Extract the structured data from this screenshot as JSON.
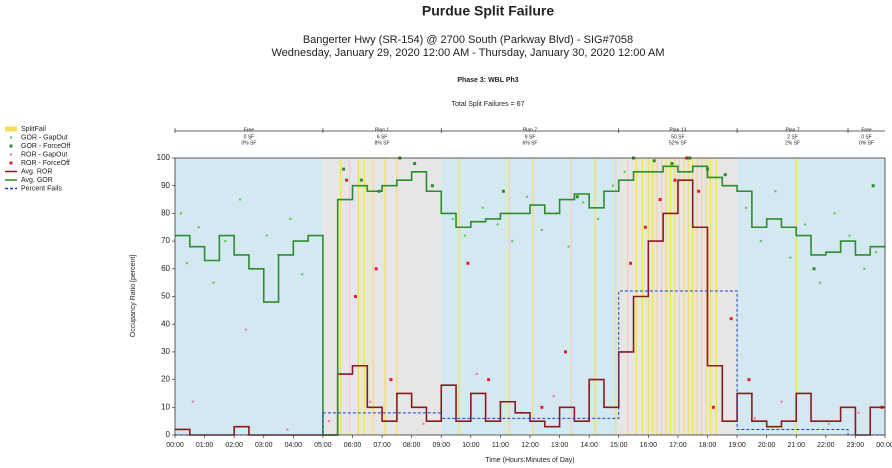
{
  "chart_data": {
    "type": "split-failure",
    "title": "Purdue Split Failure",
    "subtitle": [
      "Bangerter Hwy (SR-154) @ 2700 South (Parkway Blvd) - SIG#7058",
      "Wednesday, January 29, 2020 12:00 AM - Thursday, January 30, 2020 12:00 AM"
    ],
    "phase": "Phase 3: WBL Ph3",
    "total": "Total Split Failures = 67",
    "y_label": "Occupancy Ratio [percent]",
    "x_label": "Time (Hours:Minutes of Day)",
    "xlim": [
      0,
      24
    ],
    "ylim": [
      0,
      100
    ],
    "yticks": [
      0,
      10,
      20,
      30,
      40,
      50,
      60,
      70,
      80,
      90,
      100
    ],
    "xticks": [
      {
        "value": 0,
        "label": "00:00"
      },
      {
        "value": 1,
        "label": "01:00"
      },
      {
        "value": 2,
        "label": "02:00"
      },
      {
        "value": 3,
        "label": "03:00"
      },
      {
        "value": 4,
        "label": "04:00"
      },
      {
        "value": 5,
        "label": "05:00"
      },
      {
        "value": 6,
        "label": "06:00"
      },
      {
        "value": 7,
        "label": "07:00"
      },
      {
        "value": 8,
        "label": "08:00"
      },
      {
        "value": 9,
        "label": "09:00"
      },
      {
        "value": 10,
        "label": "10:00"
      },
      {
        "value": 11,
        "label": "11:00"
      },
      {
        "value": 12,
        "label": "12:00"
      },
      {
        "value": 13,
        "label": "13:00"
      },
      {
        "value": 14,
        "label": "14:00"
      },
      {
        "value": 15,
        "label": "15:00"
      },
      {
        "value": 16,
        "label": "16:00"
      },
      {
        "value": 17,
        "label": "17:00"
      },
      {
        "value": 18,
        "label": "18:00"
      },
      {
        "value": 19,
        "label": "19:00"
      },
      {
        "value": 20,
        "label": "20:00"
      },
      {
        "value": 21,
        "label": "21:00"
      },
      {
        "value": 22,
        "label": "22:00"
      },
      {
        "value": 23,
        "label": "23:00"
      },
      {
        "value": 24,
        "label": "00:00"
      }
    ],
    "plans": [
      {
        "name": "Free",
        "start": 0,
        "end": 5,
        "fails_label": "0 SF",
        "percent_label": "0% SF",
        "color": "#d4e8f2"
      },
      {
        "name": "Plan 1",
        "start": 5,
        "end": 9,
        "fails_label": "6 SF",
        "percent_label": "8% SF",
        "color": "#e6e6e6"
      },
      {
        "name": "Plan 7",
        "start": 9,
        "end": 15,
        "fails_label": "9 SF",
        "percent_label": "6% SF",
        "color": "#d4e8f2"
      },
      {
        "name": "Plan 13",
        "start": 15,
        "end": 19,
        "fails_label": "50 SF",
        "percent_label": "52% SF",
        "color": "#e6e6e6"
      },
      {
        "name": "Plan 7",
        "start": 19,
        "end": 22.75,
        "fails_label": "2 SF",
        "percent_label": "2% SF",
        "color": "#d4e8f2"
      },
      {
        "name": "Free",
        "start": 22.75,
        "end": 24,
        "fails_label": "0 SF",
        "percent_label": "0% SF",
        "color": "#d4e8f2"
      }
    ],
    "x": [
      0,
      0.5,
      1,
      1.5,
      2,
      2.5,
      3,
      3.5,
      4,
      4.5,
      5,
      5.5,
      6,
      6.5,
      7,
      7.5,
      8,
      8.5,
      9,
      9.5,
      10,
      10.5,
      11,
      11.5,
      12,
      12.5,
      13,
      13.5,
      14,
      14.5,
      15,
      15.5,
      16,
      16.5,
      17,
      17.5,
      18,
      18.5,
      19,
      19.5,
      20,
      20.5,
      21,
      21.5,
      22,
      22.5,
      23,
      23.5
    ],
    "series": [
      {
        "name": "SplitFail",
        "style": "vline",
        "color": "#f5df5a",
        "x": [
          5.6,
          5.9,
          6.2,
          6.4,
          6.7,
          7.1,
          7.5,
          9.6,
          11.3,
          12.1,
          13.4,
          14.2,
          14.9,
          15.3,
          15.6,
          15.8,
          16.0,
          16.15,
          16.3,
          16.45,
          16.6,
          16.75,
          16.9,
          17.05,
          17.2,
          17.35,
          17.5,
          17.65,
          17.8,
          17.95,
          18.1,
          18.3,
          21.0
        ]
      },
      {
        "name": "GOR - GapOut",
        "style": "dot",
        "color": "#5cc85c",
        "x": [
          0.2,
          0.4,
          0.8,
          1.3,
          1.7,
          2.2,
          2.6,
          3.1,
          3.5,
          3.9,
          4.3,
          9.4,
          9.8,
          10.4,
          10.9,
          11.4,
          11.9,
          12.4,
          12.9,
          13.3,
          13.8,
          14.3,
          14.8,
          15.2,
          19.3,
          19.8,
          20.3,
          20.8,
          21.3,
          21.8,
          22.3,
          22.8,
          23.3,
          23.7
        ],
        "values": [
          80,
          62,
          75,
          55,
          70,
          85,
          60,
          72,
          65,
          78,
          58,
          78,
          72,
          82,
          76,
          70,
          86,
          74,
          80,
          68,
          84,
          78,
          90,
          95,
          82,
          70,
          88,
          64,
          76,
          55,
          80,
          72,
          60,
          66
        ]
      },
      {
        "name": "GOR - ForceOff",
        "style": "square",
        "color": "#2e8b2e",
        "x": [
          5.7,
          6.3,
          6.9,
          7.6,
          8.1,
          8.7,
          11.1,
          13.6,
          15.5,
          16.2,
          16.8,
          17.4,
          18.0,
          18.6,
          21.6,
          23.6
        ],
        "values": [
          96,
          92,
          88,
          100,
          98,
          90,
          88,
          86,
          100,
          99,
          98,
          100,
          96,
          94,
          60,
          90
        ]
      },
      {
        "name": "ROR - GapOut",
        "style": "dot",
        "color": "#f07aa6",
        "x": [
          0.6,
          2.4,
          3.8,
          5.2,
          6.6,
          8.4,
          10.2,
          11.7,
          12.8,
          14.0,
          15.1,
          19.6,
          20.5,
          22.1,
          23.1
        ],
        "values": [
          12,
          38,
          2,
          5,
          12,
          4,
          22,
          8,
          14,
          18,
          30,
          6,
          12,
          4,
          8
        ]
      },
      {
        "name": "ROR - ForceOff",
        "style": "square",
        "color": "#e02020",
        "x": [
          5.8,
          6.1,
          6.8,
          7.3,
          9.9,
          10.6,
          12.4,
          13.2,
          15.4,
          15.9,
          16.4,
          16.9,
          17.3,
          17.7,
          18.2,
          18.8,
          19.4,
          23.9
        ],
        "values": [
          92,
          50,
          60,
          20,
          62,
          20,
          10,
          30,
          62,
          75,
          85,
          92,
          100,
          88,
          10,
          42,
          20,
          10
        ]
      },
      {
        "name": "Avg. ROR",
        "style": "step",
        "color": "#8b1a1a",
        "values": [
          2,
          0,
          0,
          0,
          3,
          0,
          0,
          0,
          0,
          0,
          0,
          22,
          25,
          10,
          5,
          15,
          10,
          5,
          18,
          5,
          15,
          5,
          12,
          8,
          5,
          3,
          10,
          5,
          20,
          10,
          30,
          50,
          70,
          80,
          92,
          75,
          25,
          5,
          15,
          5,
          3,
          5,
          15,
          5,
          5,
          10,
          0,
          10
        ]
      },
      {
        "name": "Avg. GOR",
        "style": "step",
        "color": "#2e8b2e",
        "values": [
          72,
          68,
          63,
          72,
          65,
          60,
          48,
          65,
          70,
          72,
          0,
          85,
          90,
          88,
          90,
          92,
          95,
          88,
          80,
          75,
          77,
          78,
          80,
          80,
          83,
          80,
          85,
          87,
          82,
          88,
          92,
          95,
          95,
          97,
          95,
          97,
          93,
          90,
          88,
          75,
          78,
          75,
          72,
          65,
          66,
          70,
          65,
          68
        ]
      },
      {
        "name": "Percent Fails",
        "style": "dash",
        "color": "#1f3fbf",
        "x": [
          0,
          5,
          9,
          15,
          19,
          22.75
        ],
        "values": [
          0,
          8,
          6,
          52,
          2,
          0
        ]
      }
    ]
  }
}
